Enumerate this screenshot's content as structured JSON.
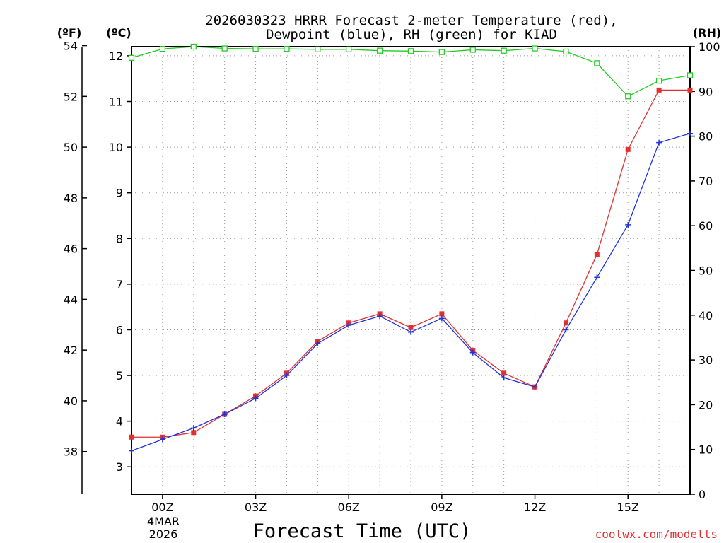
{
  "chart_data": {
    "type": "line",
    "title_line1": "2026030323 HRRR Forecast 2-meter Temperature (red),",
    "title_line2": "Dewpoint (blue), RH (green) for KIAD",
    "xlabel": "Forecast Time (UTC)",
    "credit": "coolwx.com/modelts",
    "left_outer_unit": "(ºF)",
    "left_inner_unit": "(ºC)",
    "right_unit": "(RH)",
    "x_ticks": [
      "00Z",
      "03Z",
      "06Z",
      "09Z",
      "12Z",
      "15Z"
    ],
    "x_tick_hours": [
      0,
      3,
      6,
      9,
      12,
      15
    ],
    "date_line1": "4MAR",
    "date_line2": "2026",
    "xlim": [
      -1,
      17
    ],
    "celsius_ticks": [
      "3",
      "4",
      "5",
      "6",
      "7",
      "8",
      "9",
      "10",
      "11",
      "12"
    ],
    "fahrenheit_ticks": [
      "38",
      "40",
      "42",
      "44",
      "46",
      "48",
      "50",
      "52",
      "54"
    ],
    "rh_ticks": [
      "0",
      "10",
      "20",
      "30",
      "40",
      "50",
      "60",
      "70",
      "80",
      "90",
      "100"
    ],
    "ylim_c": [
      2.4,
      12.2
    ],
    "ylim_rh": [
      0,
      100
    ],
    "colors": {
      "temperature": "#e03030",
      "dewpoint": "#2233dd",
      "rh": "#22cc22",
      "grid": "#999999"
    },
    "hours": [
      -1,
      0,
      1,
      2,
      3,
      4,
      5,
      6,
      7,
      8,
      9,
      10,
      11,
      12,
      13,
      14,
      15,
      16,
      17
    ],
    "series": [
      {
        "name": "Temperature (red)",
        "unit": "C",
        "values": [
          3.65,
          3.65,
          3.75,
          4.15,
          4.55,
          5.05,
          5.75,
          6.15,
          6.35,
          6.05,
          6.35,
          5.55,
          5.05,
          4.75,
          6.15,
          7.65,
          9.95,
          11.25,
          11.25
        ]
      },
      {
        "name": "Dewpoint (blue)",
        "unit": "C",
        "values": [
          3.35,
          3.6,
          3.85,
          4.15,
          4.5,
          5.0,
          5.7,
          6.1,
          6.3,
          5.95,
          6.25,
          5.5,
          4.95,
          4.75,
          6.0,
          7.15,
          8.3,
          10.1,
          10.3
        ]
      },
      {
        "name": "RH (green)",
        "unit": "%",
        "values": [
          97.5,
          99.5,
          100,
          99.6,
          99.5,
          99.5,
          99.4,
          99.4,
          99.1,
          99.0,
          98.8,
          99.3,
          99.1,
          99.6,
          98.9,
          96.3,
          88.9,
          92.4,
          93.6
        ]
      }
    ]
  }
}
